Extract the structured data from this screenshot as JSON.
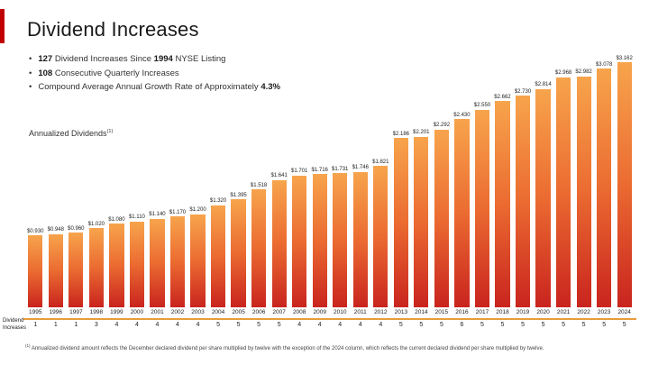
{
  "slide": {
    "title": "Dividend Increases"
  },
  "bullets": [
    {
      "segments": [
        {
          "text": "127",
          "bold": true
        },
        {
          "text": " Dividend Increases Since "
        },
        {
          "text": "1994",
          "bold": true
        },
        {
          "text": " NYSE Listing"
        }
      ]
    },
    {
      "segments": [
        {
          "text": "108",
          "bold": true
        },
        {
          "text": " Consecutive Quarterly Increases"
        }
      ]
    },
    {
      "segments": [
        {
          "text": "Compound Average Annual Growth Rate of Approximately "
        },
        {
          "text": "4.3%",
          "bold": true
        }
      ]
    }
  ],
  "labels": {
    "annualized_dividends": "Annualized Dividends",
    "annualized_superscript": "(1)",
    "increases_row_label_line1": "Dividend",
    "increases_row_label_line2": "Increases"
  },
  "footnote": {
    "marker": "(1)",
    "text": "Annualized dividend amount reflects the December declared dividend per share multiplied by twelve with the exception of the 2024 column, which reflects the current declared dividend per share multiplied by twelve."
  },
  "colors": {
    "accent": "#C00000",
    "bar_top": "#F7A44C",
    "bar_mid": "#EB6B31",
    "bar_bottom": "#C9241E",
    "rule": "#E89C3C"
  },
  "chart_data": {
    "type": "bar",
    "title": "Annualized Dividends",
    "xlabel": "",
    "ylabel": "",
    "ylim": [
      0,
      3.2
    ],
    "grid": false,
    "legend": false,
    "categories": [
      "1995",
      "1996",
      "1997",
      "1998",
      "1999",
      "2000",
      "2001",
      "2002",
      "2003",
      "2004",
      "2005",
      "2006",
      "2007",
      "2008",
      "2009",
      "2010",
      "2011",
      "2012",
      "2013",
      "2014",
      "2015",
      "2016",
      "2017",
      "2018",
      "2019",
      "2020",
      "2021",
      "2022",
      "2023",
      "2024"
    ],
    "values": [
      0.93,
      0.948,
      0.96,
      1.02,
      1.08,
      1.11,
      1.14,
      1.17,
      1.2,
      1.32,
      1.395,
      1.518,
      1.641,
      1.701,
      1.716,
      1.731,
      1.746,
      1.821,
      2.186,
      2.201,
      2.292,
      2.43,
      2.55,
      2.662,
      2.73,
      2.814,
      2.968,
      2.982,
      3.078,
      3.162
    ],
    "value_labels": [
      "$0.930",
      "$0.948",
      "$0.960",
      "$1.020",
      "$1.080",
      "$1.110",
      "$1.140",
      "$1.170",
      "$1.200",
      "$1.320",
      "$1.395",
      "$1.518",
      "$1.641",
      "$1.701",
      "$1.716",
      "$1.731",
      "$1.746",
      "$1.821",
      "$2.186",
      "$2.201",
      "$2.292",
      "$2.430",
      "$2.550",
      "$2.662",
      "$2.730",
      "$2.814",
      "$2.968",
      "$2.982",
      "$3.078",
      "$3.162"
    ],
    "dividend_increases": [
      1,
      1,
      1,
      3,
      4,
      4,
      4,
      4,
      4,
      5,
      5,
      5,
      5,
      4,
      4,
      4,
      4,
      4,
      5,
      5,
      5,
      6,
      5,
      5,
      5,
      5,
      5,
      5,
      5,
      5
    ]
  }
}
